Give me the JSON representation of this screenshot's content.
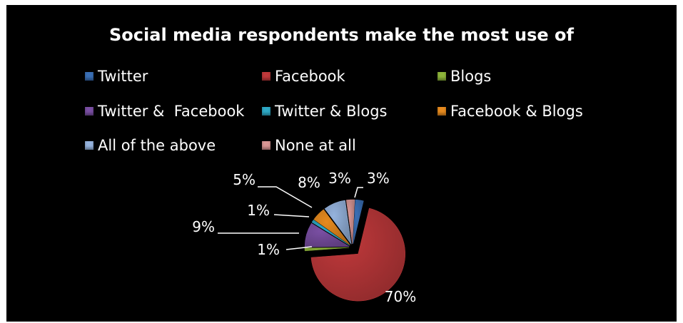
{
  "chart_data": {
    "type": "pie",
    "title": "Social media respondents make the most use of",
    "categories": [
      "Twitter",
      "Facebook",
      "Blogs",
      "Twitter &  Facebook",
      "Twitter & Blogs",
      "Facebook & Blogs",
      "All of the above",
      "None at all"
    ],
    "values": [
      3,
      70,
      1,
      9,
      1,
      5,
      8,
      3
    ],
    "data_labels": [
      "3%",
      "70%",
      "1%",
      "9%",
      "1%",
      "5%",
      "8%",
      "3%"
    ],
    "colors": [
      "#3a6fb5",
      "#c0393b",
      "#8db43a",
      "#7a4fa3",
      "#2ea9c6",
      "#e68a1e",
      "#95b3dd",
      "#d99694"
    ],
    "legend_position": "top"
  }
}
